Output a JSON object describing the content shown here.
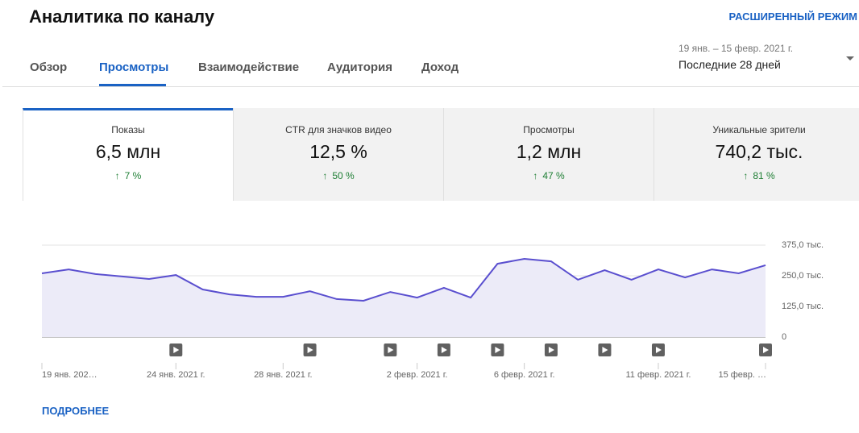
{
  "header": {
    "title": "Аналитика по каналу",
    "advanced_mode": "РАСШИРЕННЫЙ РЕЖИМ"
  },
  "tabs": {
    "items": [
      "Обзор",
      "Просмотры",
      "Взаимодействие",
      "Аудитория",
      "Доход"
    ],
    "active": 1
  },
  "date_range": {
    "dates": "19 янв. – 15 февр. 2021 г.",
    "period": "Последние 28 дней"
  },
  "metrics": [
    {
      "label": "Показы",
      "value": "6,5 млн",
      "change": "7 %"
    },
    {
      "label": "CTR для значков видео",
      "value": "12,5 %",
      "change": "50 %"
    },
    {
      "label": "Просмотры",
      "value": "1,2 млн",
      "change": "47 %"
    },
    {
      "label": "Уникальные зрители",
      "value": "740,2 тыс.",
      "change": "81 %"
    }
  ],
  "chart_data": {
    "type": "area",
    "color": "#5a4fcf",
    "fill": "#ecebf8",
    "categories": [
      "19 янв. 202…",
      null,
      null,
      null,
      null,
      "24 янв. 2021 г.",
      null,
      null,
      null,
      "28 янв. 2021 г.",
      null,
      null,
      null,
      null,
      "2 февр. 2021 г.",
      null,
      null,
      null,
      "6 февр. 2021 г.",
      null,
      null,
      null,
      null,
      "11 февр. 2021 г.",
      null,
      null,
      null,
      "15 февр. …"
    ],
    "values": [
      260000,
      276000,
      257000,
      247000,
      237000,
      253000,
      194000,
      174000,
      164000,
      164000,
      187000,
      155000,
      148000,
      184000,
      161000,
      201000,
      161000,
      299000,
      319000,
      309000,
      234000,
      273000,
      234000,
      276000,
      243000,
      276000,
      260000,
      293000
    ],
    "ylim": [
      0,
      375000
    ],
    "yticks": [
      0,
      {
        "value": 125000,
        "label": "125,0 тыс."
      },
      {
        "value": 250000,
        "label": "250,0 тыс."
      },
      {
        "value": 375000,
        "label": "375,0 тыс."
      }
    ],
    "grid": true
  },
  "footer": {
    "more": "ПОДРОБНЕЕ"
  }
}
